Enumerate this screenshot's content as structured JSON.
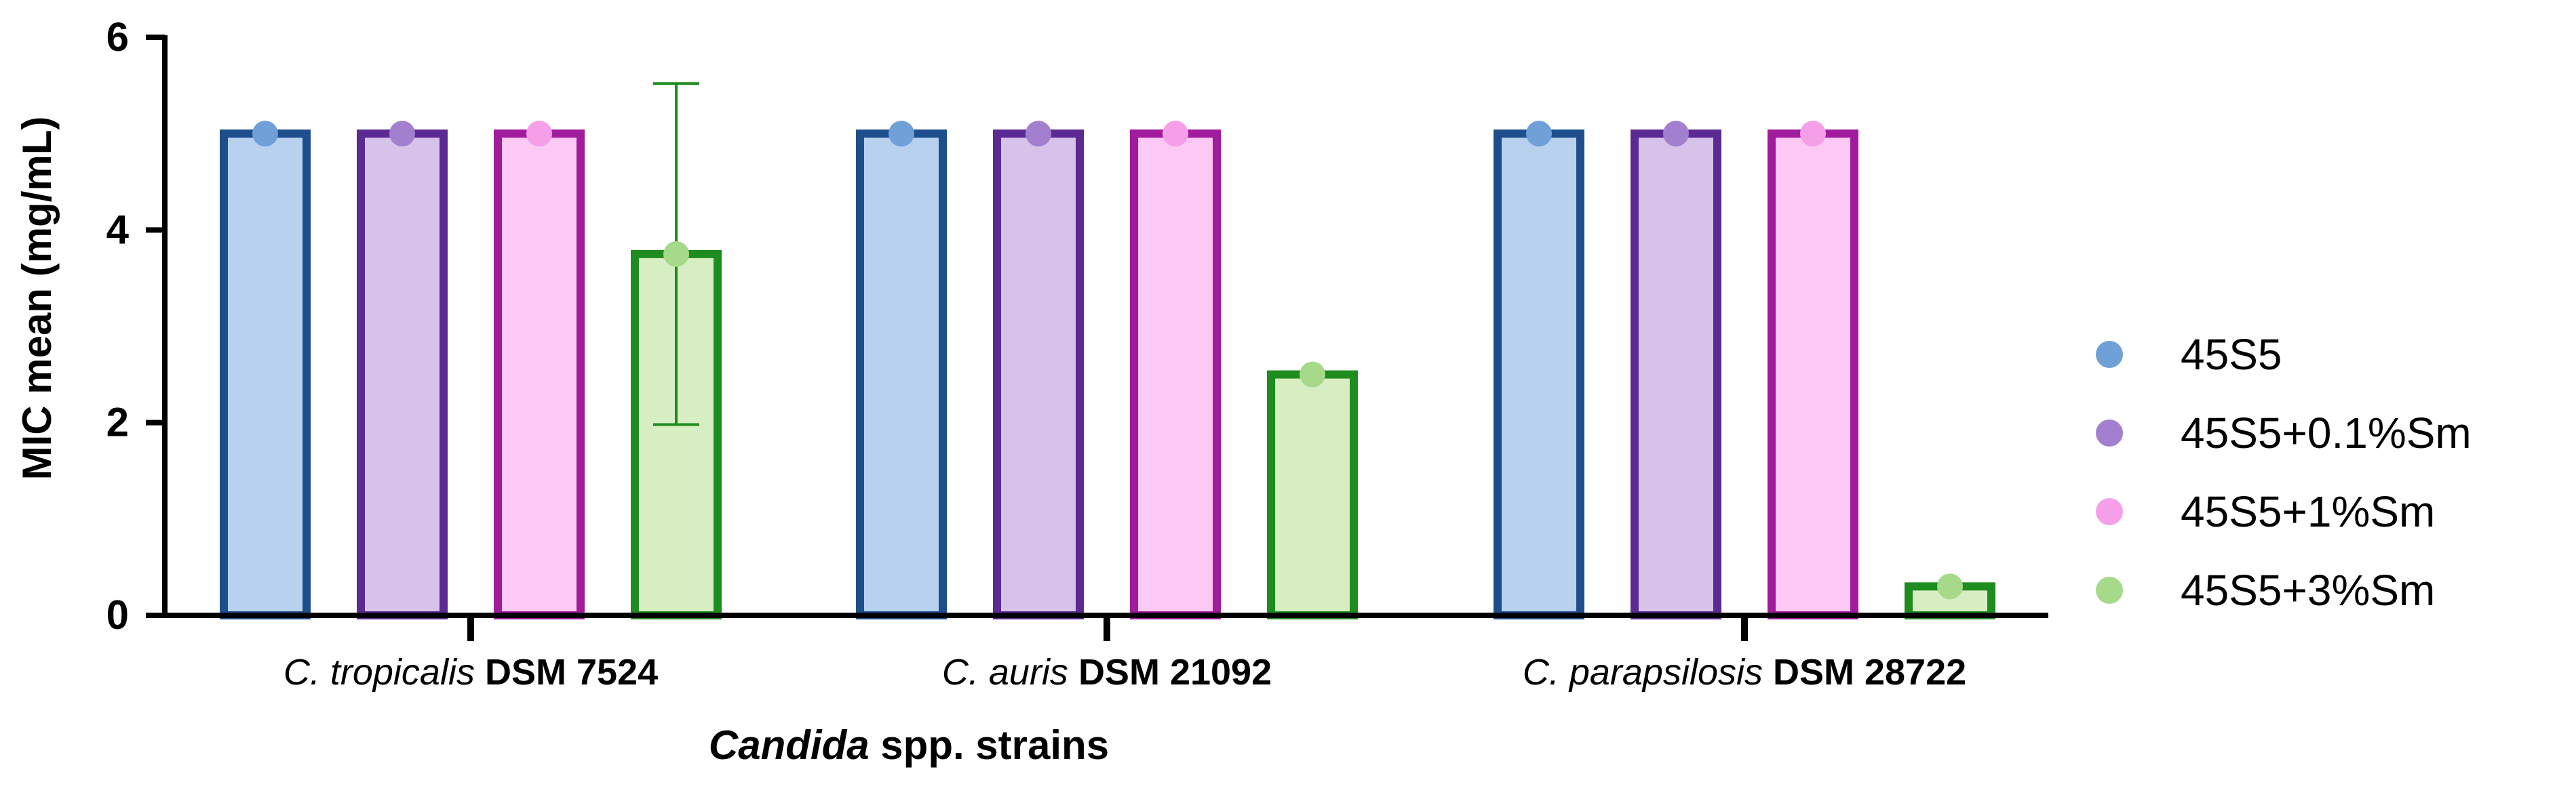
{
  "chart_data": {
    "type": "bar",
    "title": "",
    "ylabel": "MIC mean (mg/mL)",
    "xlabel_italic": "Candida",
    "xlabel_rest": " spp. strains",
    "ylim": [
      0,
      6
    ],
    "yticks": [
      0,
      2,
      4,
      6
    ],
    "grid": false,
    "legend_position": "right",
    "categories": [
      {
        "italic": "C. tropicalis",
        "bold": "DSM 7524"
      },
      {
        "italic": "C. auris",
        "bold": "DSM 21092"
      },
      {
        "italic": "C. parapsilosis",
        "bold": "DSM 28722"
      }
    ],
    "series": [
      {
        "name": "45S5",
        "values": [
          5,
          5,
          5
        ],
        "fill": "#b8d1ee",
        "stroke": "#1f4e8c",
        "dot": "#6fa0d8",
        "errors": [
          0,
          0,
          0
        ]
      },
      {
        "name": "45S5+0.1%Sm",
        "values": [
          5,
          5,
          5
        ],
        "fill": "#d7c3e9",
        "stroke": "#5b2a93",
        "dot": "#a380cf",
        "errors": [
          0,
          0,
          0
        ]
      },
      {
        "name": "45S5+1%Sm",
        "values": [
          5,
          5,
          5
        ],
        "fill": "#fcc8f4",
        "stroke": "#a01c9c",
        "dot": "#f59fe8",
        "errors": [
          0,
          0,
          0
        ]
      },
      {
        "name": "45S5+3%Sm",
        "values": [
          3.75,
          2.5,
          0.3
        ],
        "fill": "#d7eec3",
        "stroke": "#1e8c1e",
        "dot": "#a6d98a",
        "errors": [
          1.77,
          0,
          0
        ]
      }
    ]
  }
}
